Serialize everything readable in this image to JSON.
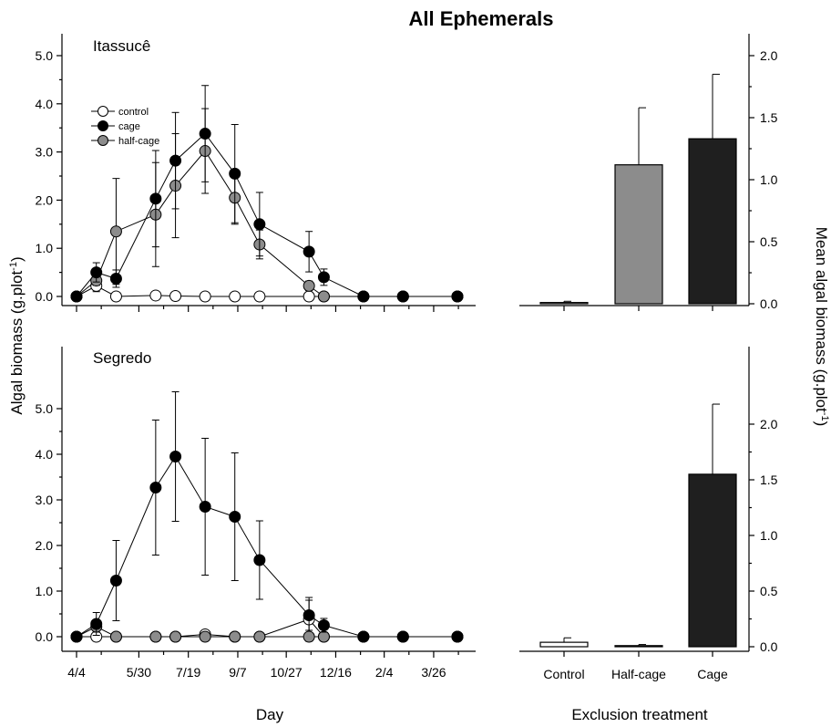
{
  "figure": {
    "title": "All Ephemerals",
    "left_ylabel": "Algal biomass (g.plot",
    "left_ylabel_sup": "-1",
    "left_ylabel_end": ")",
    "right_ylabel": "Mean algal biomass (g.plot",
    "right_ylabel_sup": "-1",
    "right_ylabel_end": ")",
    "left_xlabel": "Day",
    "right_xlabel": "Exclusion treatment"
  },
  "legend": {
    "placement": "top-left"
  },
  "colors": {
    "control": "#ffffff",
    "cage": "#000000",
    "half-cage": "#8c8c8c",
    "bar_half": "#8c8c8c",
    "bar_cage": "#1f1f1f"
  },
  "chart_data": [
    {
      "type": "line",
      "panel": "Itassucê",
      "x_tick_labels": [
        "4/4",
        "5/30",
        "7/19",
        "9/7",
        "10/27",
        "12/16",
        "2/4",
        "3/26"
      ],
      "x_ticks": [
        0,
        56,
        106,
        156,
        206,
        256,
        306,
        356
      ],
      "xlim": [
        -15,
        395
      ],
      "ylim": [
        -0.3,
        5.5
      ],
      "yticks": [
        0.0,
        1.0,
        2.0,
        3.0,
        4.0,
        5.0
      ],
      "ytick_labels": [
        "0.0",
        "1.0",
        "2.0",
        "3.0",
        "4.0",
        "5.0"
      ],
      "series": [
        {
          "name": "control",
          "key": "control",
          "x": [
            0,
            20,
            40,
            80,
            100,
            130,
            160,
            185,
            235,
            250,
            290,
            330,
            385
          ],
          "y": [
            0,
            0.22,
            0,
            0.02,
            0.01,
            0,
            0,
            0,
            0,
            0,
            0,
            0,
            0
          ],
          "err": [
            0,
            0.12,
            0,
            0.07,
            0.06,
            0,
            0,
            0,
            0,
            0,
            0,
            0,
            0
          ]
        },
        {
          "name": "cage",
          "key": "cage",
          "x": [
            0,
            20,
            40,
            80,
            100,
            130,
            160,
            185,
            235,
            250,
            290,
            330,
            385
          ],
          "y": [
            0,
            0.5,
            0.37,
            2.03,
            2.82,
            3.38,
            2.55,
            1.5,
            0.93,
            0.4,
            0,
            0,
            0
          ],
          "err": [
            0,
            0.2,
            0.18,
            1.0,
            1.0,
            1.0,
            1.02,
            0.66,
            0.42,
            0.17,
            0,
            0,
            0
          ]
        },
        {
          "name": "half-cage",
          "key": "half-cage",
          "x": [
            0,
            20,
            40,
            80,
            100,
            130,
            160,
            185,
            235,
            250,
            290,
            330,
            385
          ],
          "y": [
            0,
            0.33,
            1.35,
            1.7,
            2.3,
            3.02,
            2.05,
            1.08,
            0.22,
            0,
            0,
            0,
            0
          ],
          "err": [
            0,
            0.1,
            1.1,
            1.08,
            1.08,
            0.88,
            0.55,
            0.3,
            0.1,
            0,
            0,
            0,
            0
          ]
        }
      ]
    },
    {
      "type": "line",
      "panel": "Segredo",
      "x_tick_labels": [
        "4/4",
        "5/30",
        "7/19",
        "9/7",
        "10/27",
        "12/16",
        "2/4",
        "3/26"
      ],
      "x_ticks": [
        0,
        56,
        106,
        156,
        206,
        256,
        306,
        356
      ],
      "xlim": [
        -15,
        395
      ],
      "ylim": [
        -0.3,
        5.5
      ],
      "yticks": [
        0.0,
        1.0,
        2.0,
        3.0,
        4.0,
        5.0
      ],
      "ytick_labels": [
        "0.0",
        "1.0",
        "2.0",
        "3.0",
        "4.0",
        "5.0"
      ],
      "series": [
        {
          "name": "control",
          "key": "control",
          "x": [
            0,
            20,
            40,
            80,
            100,
            130,
            160,
            185,
            235,
            250,
            290,
            330,
            385
          ],
          "y": [
            0,
            0,
            0,
            0,
            0,
            0.05,
            0,
            0,
            0.38,
            0,
            0,
            0,
            0
          ],
          "err": [
            0,
            0,
            0,
            0,
            0,
            0.05,
            0,
            0,
            0.48,
            0,
            0,
            0,
            0
          ]
        },
        {
          "name": "cage",
          "key": "cage",
          "x": [
            0,
            20,
            40,
            80,
            100,
            130,
            160,
            185,
            235,
            250,
            290,
            330,
            385
          ],
          "y": [
            0,
            0.28,
            1.23,
            3.27,
            3.95,
            2.85,
            2.63,
            1.68,
            0.47,
            0.25,
            0,
            0,
            0
          ],
          "err": [
            0,
            0.25,
            0.88,
            1.48,
            1.42,
            1.5,
            1.4,
            0.86,
            0.33,
            0.15,
            0,
            0,
            0
          ]
        },
        {
          "name": "half-cage",
          "key": "half-cage",
          "x": [
            0,
            20,
            40,
            80,
            100,
            130,
            160,
            185,
            235,
            250,
            290,
            330,
            385
          ],
          "y": [
            0,
            0.22,
            0,
            0,
            0,
            0,
            0,
            0,
            0,
            0,
            0,
            0,
            0
          ],
          "err": [
            0,
            0.12,
            0,
            0,
            0,
            0,
            0,
            0,
            0,
            0,
            0,
            0,
            0
          ]
        }
      ]
    },
    {
      "type": "bar",
      "panel": "Itassucê",
      "categories": [
        "Control",
        "Half-cage",
        "Cage"
      ],
      "values": [
        0.01,
        1.12,
        1.33
      ],
      "errors": [
        0.01,
        0.46,
        0.52
      ],
      "ylim": [
        -0.12,
        2.2
      ],
      "yticks": [
        0.0,
        0.5,
        1.0,
        1.5,
        2.0
      ],
      "ytick_labels": [
        "0.0",
        "0.5",
        "1.0",
        "1.5",
        "2.0"
      ]
    },
    {
      "type": "bar",
      "panel": "Segredo",
      "categories": [
        "Control",
        "Half-cage",
        "Cage"
      ],
      "values": [
        0.04,
        0.01,
        1.55
      ],
      "errors": [
        0.04,
        0.01,
        0.63
      ],
      "ylim": [
        -0.12,
        2.2
      ],
      "yticks": [
        0.0,
        0.5,
        1.0,
        1.5,
        2.0
      ],
      "ytick_labels": [
        "0.0",
        "0.5",
        "1.0",
        "1.5",
        "2.0"
      ]
    }
  ]
}
